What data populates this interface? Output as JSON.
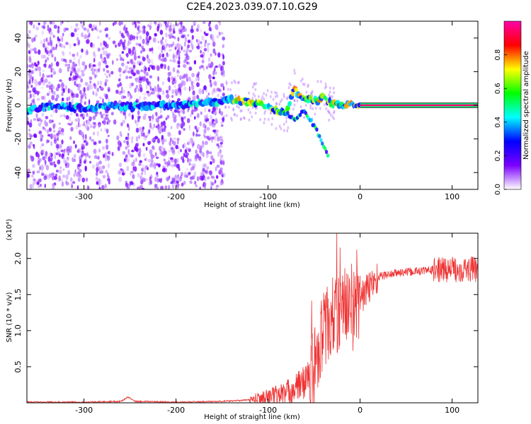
{
  "title": "C2E4.2023.039.07.10.G29",
  "colors": {
    "snr_line": "#ee3333",
    "axis": "#000000",
    "dot_base": "#7a2cf0",
    "trace_core": "#e8322c",
    "band_line": "#1a1a1a"
  },
  "chart_data": [
    {
      "type": "heatmap",
      "xlabel": "Height of straight line (km)",
      "ylabel": "Frequency (Hz)",
      "xlim": [
        -362,
        128
      ],
      "ylim": [
        -50,
        50
      ],
      "xticks": [
        -300,
        -200,
        -100,
        0,
        100
      ],
      "yticks": [
        -40,
        -20,
        0,
        20,
        40
      ],
      "colorbar": {
        "label": "Normalized spectral amplitude",
        "range": [
          0,
          1
        ],
        "ticks": [
          "0.0",
          "0.2",
          "0.4",
          "0.6",
          "0.8"
        ],
        "colormap": [
          "#ffffff",
          "#7a00ff",
          "#0000ff",
          "#00ffff",
          "#00ff00",
          "#ffff00",
          "#ff0000",
          "#ff00aa"
        ]
      },
      "noise_region_x": [
        -362,
        -148
      ],
      "noise_gap_x": [
        -272,
        -262
      ],
      "trace": {
        "x": [
          -362,
          -330,
          -300,
          -270,
          -250,
          -220,
          -190,
          -160,
          -140,
          -120,
          -100,
          -90,
          -80,
          -72,
          -65,
          -60,
          -55,
          -50,
          -45,
          -40,
          -35,
          -30,
          -20,
          -10,
          0,
          40,
          80,
          128
        ],
        "y": [
          -3,
          0,
          -2,
          0,
          -1,
          0,
          0,
          2,
          3,
          2,
          0,
          -3,
          -5,
          10,
          5,
          3,
          4,
          2,
          3,
          5,
          2,
          1,
          0,
          1,
          0,
          0,
          0,
          0
        ]
      },
      "branch": {
        "x": [
          -80,
          -70,
          -62,
          -55,
          -48,
          -42,
          -38,
          -35
        ],
        "y": [
          -5,
          -8,
          -3,
          -8,
          -14,
          -22,
          -26,
          -30
        ]
      },
      "steady_band": {
        "x": [
          0,
          128
        ],
        "y": 0,
        "level": 0.95
      }
    },
    {
      "type": "line",
      "xlabel": "Height of straight line (km)",
      "ylabel": "SNR (10 * v/v)",
      "y_multiplier": "(x10⁴)",
      "xlim": [
        -362,
        128
      ],
      "ylim": [
        0,
        2.35
      ],
      "xticks": [
        -300,
        -200,
        -100,
        0,
        100
      ],
      "yticks": [
        "0.5",
        "1.0",
        "1.5",
        "2.0"
      ],
      "series": [
        {
          "x": [
            -362,
            -300,
            -260,
            -252,
            -245,
            -200,
            -150,
            -120,
            -100,
            -80,
            -70,
            -60,
            -50,
            -45,
            -40,
            -35,
            -30,
            -25,
            -20,
            -15,
            -10,
            -5,
            0,
            10,
            20,
            40,
            60,
            80,
            100,
            128
          ],
          "y": [
            0.01,
            0.01,
            0.02,
            0.08,
            0.02,
            0.01,
            0.02,
            0.04,
            0.08,
            0.14,
            0.2,
            0.3,
            0.5,
            0.8,
            1.0,
            1.1,
            1.2,
            1.2,
            1.3,
            1.4,
            1.2,
            1.35,
            1.45,
            1.6,
            1.75,
            1.8,
            1.82,
            1.84,
            1.85,
            1.85
          ]
        }
      ]
    }
  ]
}
